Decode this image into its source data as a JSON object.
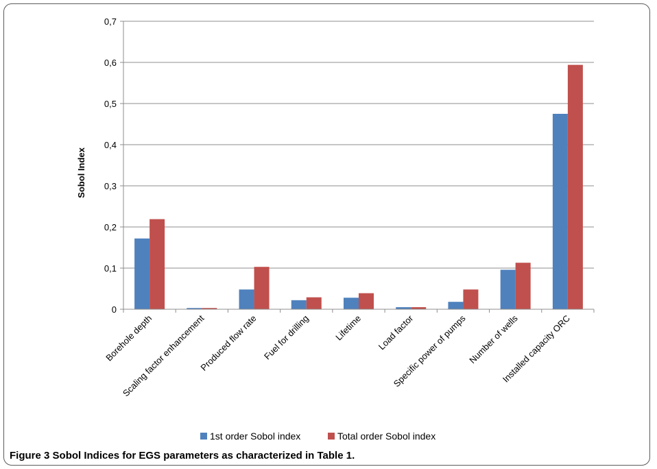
{
  "chart_data": {
    "type": "bar",
    "title": "",
    "xlabel": "",
    "ylabel": "Sobol Index",
    "ylim": [
      0,
      0.7
    ],
    "yticks": [
      "0",
      "0,1",
      "0,2",
      "0,3",
      "0,4",
      "0,5",
      "0,6",
      "0,7"
    ],
    "grid": true,
    "legend_position": "bottom",
    "categories": [
      "Borehole depth",
      "Scaling factor enhancement",
      "Produced flow rate",
      "Fuel for drilling",
      "Lifetime",
      "Load factor",
      "Specific power of pumps",
      "Number of wells",
      "Installed capacity ORC"
    ],
    "series": [
      {
        "name": "1st order Sobol index",
        "color": "#4f81bd",
        "values": [
          0.172,
          0.003,
          0.048,
          0.022,
          0.028,
          0.005,
          0.018,
          0.096,
          0.475
        ]
      },
      {
        "name": "Total order Sobol index",
        "color": "#c0504d",
        "values": [
          0.219,
          0.003,
          0.103,
          0.029,
          0.039,
          0.005,
          0.048,
          0.113,
          0.594
        ]
      }
    ]
  },
  "caption": {
    "label": "Figure 3",
    "text": " Sobol Indices for EGS parameters as characterized in Table 1."
  }
}
